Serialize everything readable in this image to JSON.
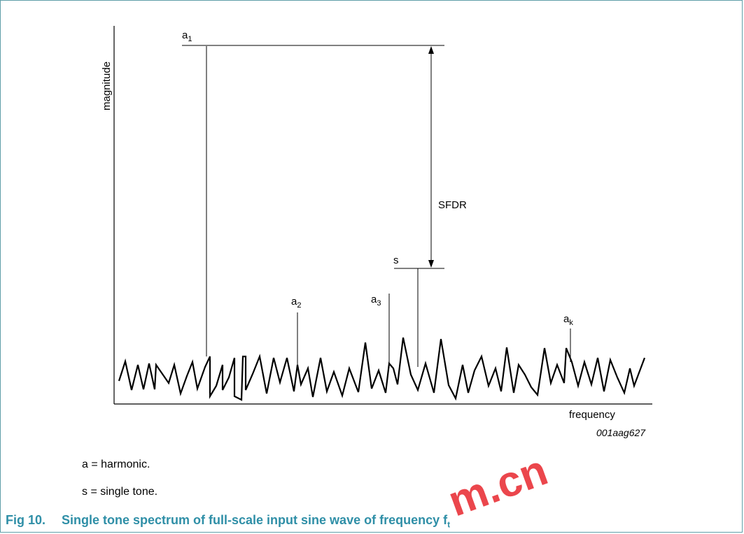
{
  "diagram": {
    "y_axis_label": "magnitude",
    "x_axis_label": "frequency",
    "figure_code": "001aag627",
    "sfdr_label": "SFDR",
    "peaks": {
      "a1": {
        "base": "a",
        "sub": "1"
      },
      "a2": {
        "base": "a",
        "sub": "2"
      },
      "a3": {
        "base": "a",
        "sub": "3"
      },
      "s": {
        "base": "s",
        "sub": ""
      },
      "ak": {
        "base": "a",
        "sub": "k"
      }
    }
  },
  "notes": {
    "line1": "a = harmonic.",
    "line2": "s = single tone."
  },
  "caption": {
    "number": "Fig 10.",
    "text": "Single tone spectrum of full-scale input sine wave of frequency f",
    "subscript": "t"
  },
  "watermark": {
    "text": "m.cn",
    "color": "#e8262d"
  }
}
